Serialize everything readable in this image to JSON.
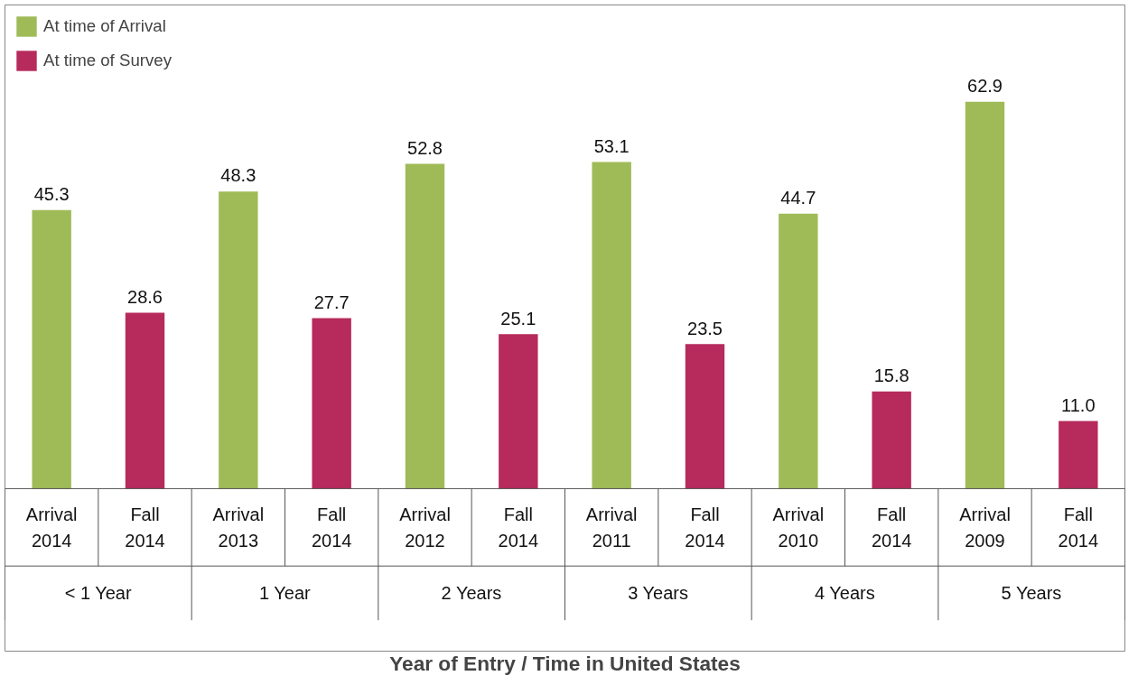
{
  "chart_data": {
    "type": "bar",
    "xlabel": "Year of Entry / Time in United States",
    "categories": [
      "Arrival\n2014",
      "Fall\n2014",
      "Arrival\n2013",
      "Fall\n2014",
      "Arrival\n2012",
      "Fall\n2014",
      "Arrival\n2011",
      "Fall\n2014",
      "Arrival\n2010",
      "Fall\n2014",
      "Arrival\n2009",
      "Fall\n2014"
    ],
    "series": [
      {
        "name": "At time of Arrival",
        "color": "#9fbb58",
        "values": [
          45.3,
          null,
          48.3,
          null,
          52.8,
          null,
          53.1,
          null,
          44.7,
          null,
          62.9,
          null
        ],
        "value_labels": [
          "45.3",
          null,
          "48.3",
          null,
          "52.8",
          null,
          "53.1",
          null,
          "44.7",
          null,
          "62.9",
          null
        ]
      },
      {
        "name": "At time of Survey",
        "color": "#b62a5c",
        "values": [
          null,
          28.6,
          null,
          27.7,
          null,
          25.1,
          null,
          23.5,
          null,
          15.8,
          null,
          11.0
        ],
        "value_labels": [
          null,
          "28.6",
          null,
          "27.7",
          null,
          "25.1",
          null,
          "23.5",
          null,
          "15.8",
          null,
          "11.0"
        ]
      }
    ],
    "annotations": [
      "< 1 Year",
      "1 Year",
      "2 Years",
      "3 Years",
      "4 Years",
      "5 Years"
    ],
    "legend": "top left",
    "grid": false
  }
}
